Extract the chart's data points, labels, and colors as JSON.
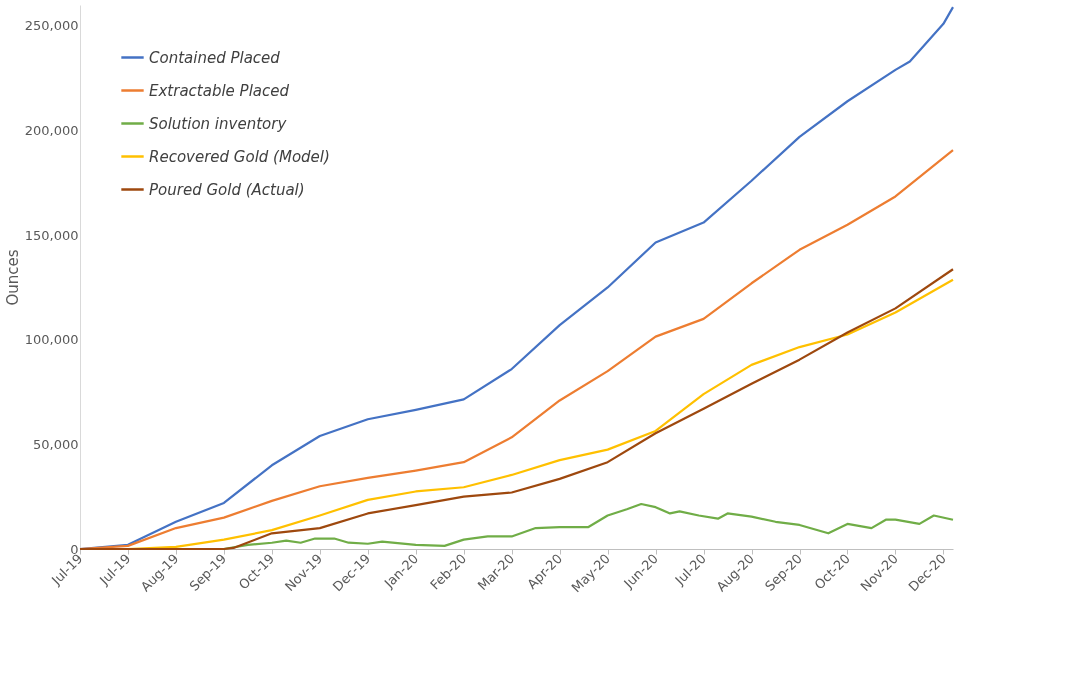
{
  "chart_data": {
    "type": "line",
    "ylabel": "Ounces",
    "xlim": [
      "2019-07-01",
      "2020-12-28"
    ],
    "ylim": [
      0,
      260000
    ],
    "xticks": [
      {
        "value": "2019-07-01",
        "label": "Jul-19"
      },
      {
        "value": "2019-07-31",
        "label": "Jul-19"
      },
      {
        "value": "2019-08-30",
        "label": "Aug-19"
      },
      {
        "value": "2019-09-29",
        "label": "Sep-19"
      },
      {
        "value": "2019-10-29",
        "label": "Oct-19"
      },
      {
        "value": "2019-11-28",
        "label": "Nov-19"
      },
      {
        "value": "2019-12-28",
        "label": "Dec-19"
      },
      {
        "value": "2020-01-27",
        "label": "Jan-20"
      },
      {
        "value": "2020-02-26",
        "label": "Feb-20"
      },
      {
        "value": "2020-03-27",
        "label": "Mar-20"
      },
      {
        "value": "2020-04-26",
        "label": "Apr-20"
      },
      {
        "value": "2020-05-26",
        "label": "May-20"
      },
      {
        "value": "2020-06-25",
        "label": "Jun-20"
      },
      {
        "value": "2020-07-25",
        "label": "Jul-20"
      },
      {
        "value": "2020-08-24",
        "label": "Aug-20"
      },
      {
        "value": "2020-09-23",
        "label": "Sep-20"
      },
      {
        "value": "2020-10-23",
        "label": "Oct-20"
      },
      {
        "value": "2020-11-22",
        "label": "Nov-20"
      },
      {
        "value": "2020-12-22",
        "label": "Dec-20"
      }
    ],
    "yticks": [
      0,
      {
        "value": 50000,
        "label": "50,000"
      },
      {
        "value": 100000,
        "label": "100,000"
      },
      {
        "value": 150000,
        "label": "150,000"
      },
      {
        "value": 200000,
        "label": "200,000"
      },
      {
        "value": 250000,
        "label": "250,000"
      }
    ],
    "grid": false,
    "legend": "top left",
    "marker": "none",
    "line_style": "solid",
    "series": [
      {
        "name": "Contained Placed",
        "color": "#4472c4",
        "x": [
          "2019-07-01",
          "2019-07-31",
          "2019-08-30",
          "2019-09-29",
          "2019-10-29",
          "2019-11-28",
          "2019-12-28",
          "2020-01-27",
          "2020-02-26",
          "2020-03-27",
          "2020-04-26",
          "2020-05-26",
          "2020-06-25",
          "2020-07-25",
          "2020-08-24",
          "2020-09-23",
          "2020-10-23",
          "2020-11-22",
          "2020-12-01",
          "2020-12-22",
          "2020-12-28"
        ],
        "values": [
          0,
          2000,
          13000,
          22000,
          40000,
          54000,
          62000,
          66500,
          71500,
          86000,
          107000,
          125000,
          146500,
          156000,
          176000,
          197000,
          214000,
          229000,
          233000,
          251000,
          259000
        ]
      },
      {
        "name": "Extractable Placed",
        "color": "#ed7d31",
        "x": [
          "2019-07-01",
          "2019-07-31",
          "2019-08-30",
          "2019-09-29",
          "2019-10-29",
          "2019-11-28",
          "2019-12-28",
          "2020-01-27",
          "2020-02-26",
          "2020-03-27",
          "2020-04-26",
          "2020-05-26",
          "2020-06-25",
          "2020-07-25",
          "2020-08-24",
          "2020-09-23",
          "2020-10-23",
          "2020-11-22",
          "2020-12-28"
        ],
        "values": [
          0,
          1500,
          10000,
          15000,
          23000,
          30000,
          34000,
          37500,
          41500,
          53400,
          71000,
          85000,
          101500,
          110000,
          127000,
          143000,
          155000,
          168500,
          190600
        ]
      },
      {
        "name": "Solution inventory",
        "color": "#70ad47",
        "x": [
          "2019-07-01",
          "2019-09-29",
          "2019-10-14",
          "2019-10-29",
          "2019-11-07",
          "2019-11-16",
          "2019-11-25",
          "2019-12-07",
          "2019-12-16",
          "2019-12-28",
          "2020-01-06",
          "2020-01-27",
          "2020-02-14",
          "2020-02-26",
          "2020-03-12",
          "2020-03-27",
          "2020-04-11",
          "2020-04-26",
          "2020-05-14",
          "2020-05-26",
          "2020-06-07",
          "2020-06-16",
          "2020-06-25",
          "2020-07-04",
          "2020-07-10",
          "2020-07-22",
          "2020-08-03",
          "2020-08-09",
          "2020-08-24",
          "2020-09-08",
          "2020-09-23",
          "2020-10-11",
          "2020-10-23",
          "2020-11-07",
          "2020-11-16",
          "2020-11-22",
          "2020-12-07",
          "2020-12-16",
          "2020-12-28"
        ],
        "values": [
          0,
          0,
          2000,
          3000,
          4000,
          3000,
          5000,
          5000,
          3000,
          2500,
          3500,
          2000,
          1500,
          4500,
          6000,
          6000,
          10000,
          10500,
          10500,
          16000,
          19000,
          21500,
          20000,
          17000,
          18000,
          16000,
          14500,
          17000,
          15500,
          13000,
          11500,
          7500,
          12000,
          10000,
          14000,
          14000,
          12000,
          16000,
          14000
        ]
      },
      {
        "name": "Recovered Gold (Model)",
        "color": "#ffc000",
        "x": [
          "2019-07-01",
          "2019-07-31",
          "2019-08-30",
          "2019-09-29",
          "2019-10-29",
          "2019-11-28",
          "2019-12-28",
          "2020-01-27",
          "2020-02-26",
          "2020-03-27",
          "2020-04-26",
          "2020-05-26",
          "2020-06-25",
          "2020-07-25",
          "2020-08-24",
          "2020-09-23",
          "2020-10-23",
          "2020-11-22",
          "2020-12-28"
        ],
        "values": [
          0,
          0,
          1000,
          4500,
          9000,
          16000,
          23500,
          27500,
          29500,
          35400,
          42500,
          47500,
          56400,
          74000,
          88000,
          96500,
          102500,
          113000,
          128700
        ]
      },
      {
        "name": "Poured Gold (Actual)",
        "color": "#9e480e",
        "x": [
          "2019-07-01",
          "2019-08-30",
          "2019-09-29",
          "2019-10-05",
          "2019-10-29",
          "2019-11-28",
          "2019-12-28",
          "2020-01-27",
          "2020-02-26",
          "2020-03-27",
          "2020-04-26",
          "2020-05-26",
          "2020-06-25",
          "2020-07-25",
          "2020-08-24",
          "2020-09-23",
          "2020-10-23",
          "2020-11-22",
          "2020-12-28"
        ],
        "values": [
          0,
          0,
          0,
          500,
          7500,
          10000,
          17000,
          21000,
          25000,
          27000,
          33500,
          41500,
          55300,
          67000,
          79000,
          90500,
          103500,
          115000,
          133700
        ]
      }
    ]
  }
}
